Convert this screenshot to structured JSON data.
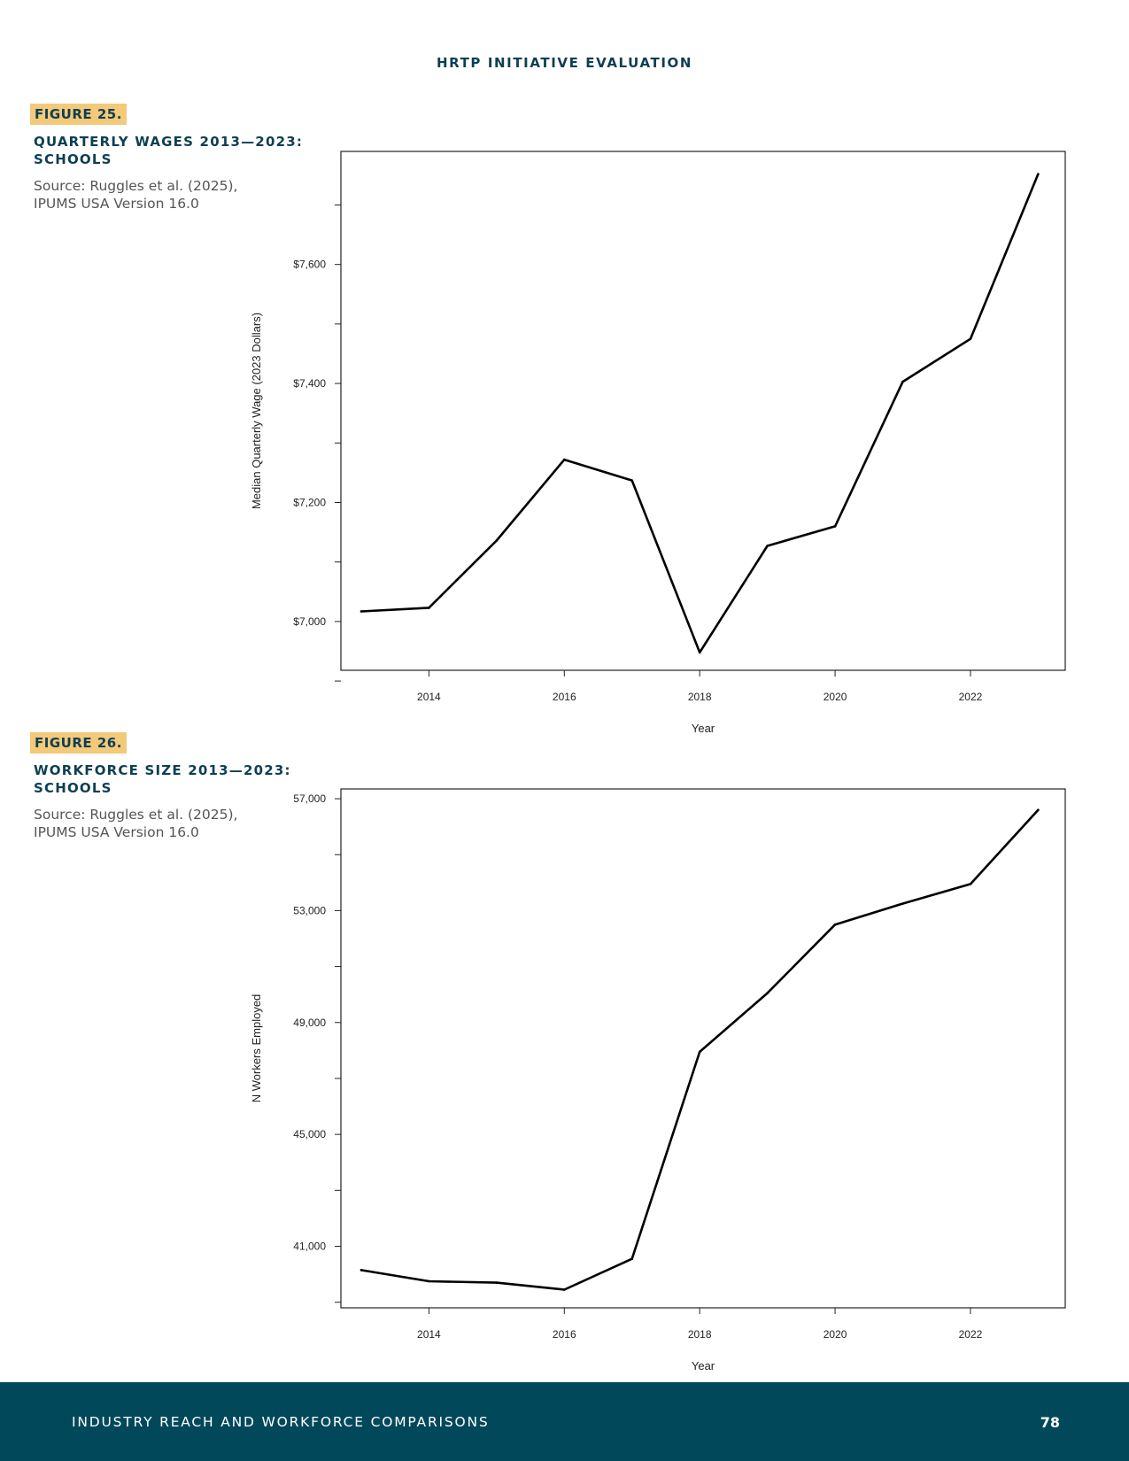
{
  "header": {
    "title": "HRTP INITIATIVE EVALUATION"
  },
  "figures": [
    {
      "label": "FIGURE 25.",
      "title": "QUARTERLY WAGES 2013—2023: SCHOOLS",
      "source": "Source: Ruggles et al. (2025), IPUMS USA Version 16.0"
    },
    {
      "label": "FIGURE 26.",
      "title": "WORKFORCE SIZE 2013—2023: SCHOOLS",
      "source": "Source: Ruggles et al. (2025), IPUMS USA Version 16.0"
    }
  ],
  "chart_data": [
    {
      "type": "line",
      "xlabel": "Year",
      "ylabel": "Median Quarterly Wage (2023 Dollars)",
      "x": [
        2013,
        2014,
        2015,
        2016,
        2017,
        2018,
        2019,
        2020,
        2021,
        2022,
        2023
      ],
      "values": [
        7017,
        7023,
        7136,
        7272,
        7237,
        6948,
        7127,
        7160,
        7403,
        7475,
        7752
      ],
      "xlim": [
        2012.7,
        2023.4
      ],
      "ylim": [
        6918,
        7790
      ],
      "xticks": [
        2014,
        2016,
        2018,
        2020,
        2022
      ],
      "xtick_labels": [
        "2014",
        "2016",
        "2018",
        "2020",
        "2022"
      ],
      "yticks": [
        6900,
        7000,
        7100,
        7200,
        7300,
        7400,
        7500,
        7600,
        7700
      ],
      "yticks_labeled": [
        7000,
        7200,
        7400,
        7600
      ],
      "ytick_labels": [
        "$7,000",
        "$7,200",
        "$7,400",
        "$7,600"
      ],
      "grid": false,
      "legend": "none"
    },
    {
      "type": "line",
      "xlabel": "Year",
      "ylabel": "N Workers Employed",
      "x": [
        2013,
        2014,
        2015,
        2016,
        2017,
        2018,
        2019,
        2020,
        2021,
        2022,
        2023
      ],
      "values": [
        40150,
        39750,
        39700,
        39450,
        40550,
        47950,
        50050,
        52500,
        53250,
        53950,
        56600
      ],
      "xlim": [
        2012.7,
        2023.4
      ],
      "ylim": [
        38800,
        57350
      ],
      "xticks": [
        2014,
        2016,
        2018,
        2020,
        2022
      ],
      "xtick_labels": [
        "2014",
        "2016",
        "2018",
        "2020",
        "2022"
      ],
      "yticks": [
        39000,
        41000,
        43000,
        45000,
        47000,
        49000,
        51000,
        53000,
        55000,
        57000
      ],
      "yticks_labeled": [
        41000,
        45000,
        49000,
        53000,
        57000
      ],
      "ytick_labels": [
        "41,000",
        "45,000",
        "49,000",
        "53,000",
        "57,000"
      ],
      "grid": false,
      "legend": "none"
    }
  ],
  "footer": {
    "section": "INDUSTRY REACH AND WORKFORCE COMPARISONS",
    "page": "78"
  }
}
